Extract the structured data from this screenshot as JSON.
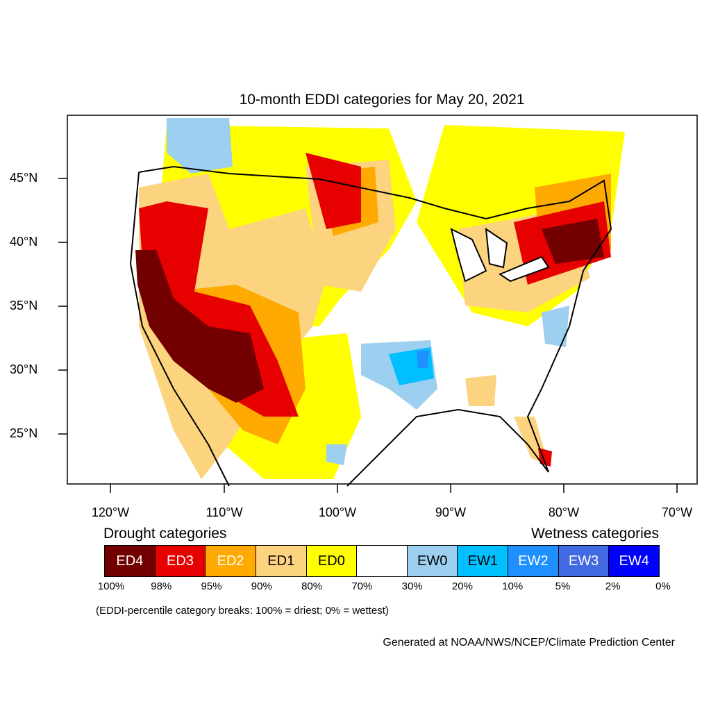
{
  "title": "10-month EDDI categories for May 20, 2021",
  "latitude_labels": [
    "45°N",
    "40°N",
    "35°N",
    "30°N",
    "25°N"
  ],
  "longitude_labels": [
    "120°W",
    "110°W",
    "100°W",
    "90°W",
    "80°W",
    "70°W"
  ],
  "legend": {
    "drought_heading": "Drought categories",
    "wetness_heading": "Wetness categories",
    "categories": [
      {
        "label": "ED4",
        "color": "#730000",
        "text_color": "#ffffff"
      },
      {
        "label": "ED3",
        "color": "#e60000",
        "text_color": "#ffffff"
      },
      {
        "label": "ED2",
        "color": "#ffaa00",
        "text_color": "#ffffff"
      },
      {
        "label": "ED1",
        "color": "#fcd37f",
        "text_color": "#000000"
      },
      {
        "label": "ED0",
        "color": "#ffff00",
        "text_color": "#000000"
      },
      {
        "label": "",
        "color": "#ffffff",
        "text_color": "#000000"
      },
      {
        "label": "EW0",
        "color": "#9ccff0",
        "text_color": "#000000"
      },
      {
        "label": "EW1",
        "color": "#00bfff",
        "text_color": "#000000"
      },
      {
        "label": "EW2",
        "color": "#1e90ff",
        "text_color": "#ffffff"
      },
      {
        "label": "EW3",
        "color": "#4169e1",
        "text_color": "#ffffff"
      },
      {
        "label": "EW4",
        "color": "#0000ff",
        "text_color": "#ffffff"
      }
    ],
    "breaks": [
      "100%",
      "98%",
      "95%",
      "90%",
      "80%",
      "70%",
      "30%",
      "20%",
      "10%",
      "5%",
      "2%",
      "0%"
    ]
  },
  "note": "(EDDI-percentile category breaks: 100% = driest; 0% = wettest)",
  "credit": "Generated at NOAA/NWS/NCEP/Climate Prediction Center"
}
